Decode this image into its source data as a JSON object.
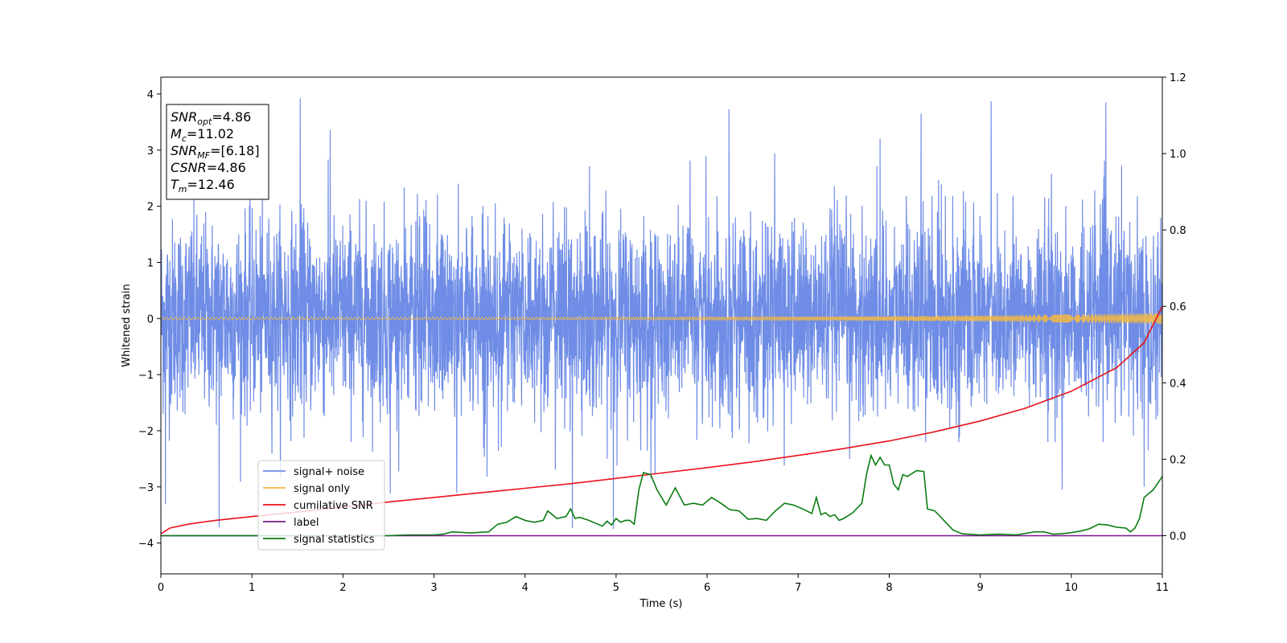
{
  "chart_data": {
    "type": "line",
    "title": "",
    "xlabel": "Time (s)",
    "ylabel": "Whitened strain",
    "y2label": "",
    "xlim": [
      0,
      11
    ],
    "ylim": [
      -4.55,
      4.3
    ],
    "y2lim": [
      -0.1,
      1.2
    ],
    "x_ticks": [
      "0",
      "1",
      "2",
      "3",
      "4",
      "5",
      "6",
      "7",
      "8",
      "9",
      "10",
      "11"
    ],
    "y_ticks": [
      "−4",
      "−3",
      "−2",
      "−1",
      "0",
      "1",
      "2",
      "3",
      "4"
    ],
    "y2_ticks": [
      "0.0",
      "0.2",
      "0.4",
      "0.6",
      "0.8",
      "1.0",
      "1.2"
    ],
    "grid": false,
    "legend_position": "lower-left",
    "annotation": {
      "lines": [
        {
          "main": "SNR",
          "sub": "opt",
          "rest": "=4.86"
        },
        {
          "main": "M",
          "sub": "c",
          "rest": "=11.02"
        },
        {
          "main": "SNR",
          "sub": "MF",
          "rest": "=[6.18]"
        },
        {
          "main": "CSNR",
          "sub": "",
          "rest": "=4.86"
        },
        {
          "main": "T",
          "sub": "m",
          "rest": "=12.46"
        }
      ]
    },
    "series": [
      {
        "name": "signal+ noise",
        "color": "#6f8de6",
        "axis": "left",
        "kind": "noise",
        "envelope": {
          "typical_min": -1.9,
          "typical_max": 2.1
        },
        "peaks": [
          {
            "x": 1.53,
            "y": 3.92
          },
          {
            "x": 9.12,
            "y": 3.87
          },
          {
            "x": 10.38,
            "y": 3.85
          },
          {
            "x": 6.24,
            "y": 3.73
          },
          {
            "x": 8.35,
            "y": 3.65
          },
          {
            "x": 0.64,
            "y": -3.72
          },
          {
            "x": 4.52,
            "y": -3.73
          },
          {
            "x": 4.97,
            "y": -3.75
          },
          {
            "x": 1.86,
            "y": 3.36
          },
          {
            "x": 0.05,
            "y": -3.31
          },
          {
            "x": 3.25,
            "y": -3.1
          },
          {
            "x": 7.9,
            "y": 3.2
          },
          {
            "x": 2.52,
            "y": -3.12
          },
          {
            "x": 10.8,
            "y": -3.0
          },
          {
            "x": 9.9,
            "y": -3.05
          }
        ]
      },
      {
        "name": "signal only",
        "color": "#f5b841",
        "axis": "left",
        "kind": "chirp",
        "amplitude_start": 0.02,
        "amplitude_end": 0.1
      },
      {
        "name": "cumilative SNR",
        "color": "#e8121b",
        "axis": "right",
        "x": [
          0,
          0.1,
          0.3,
          0.6,
          1,
          1.5,
          2,
          2.5,
          3,
          3.5,
          4,
          4.5,
          5,
          5.5,
          6,
          6.5,
          7,
          7.5,
          8,
          8.5,
          9,
          9.5,
          10,
          10.5,
          10.8,
          11
        ],
        "values": [
          0.005,
          0.02,
          0.03,
          0.04,
          0.05,
          0.062,
          0.075,
          0.088,
          0.1,
          0.112,
          0.124,
          0.136,
          0.15,
          0.164,
          0.178,
          0.193,
          0.21,
          0.228,
          0.248,
          0.272,
          0.3,
          0.334,
          0.378,
          0.44,
          0.505,
          0.6
        ]
      },
      {
        "name": "label",
        "color": "#7b148f",
        "axis": "right",
        "x": [
          0,
          11
        ],
        "values": [
          0,
          0
        ]
      },
      {
        "name": "signal statistics",
        "color": "#0b7d12",
        "axis": "right",
        "x": [
          0,
          0.5,
          1,
          1.5,
          2,
          2.5,
          2.7,
          3,
          3.1,
          3.2,
          3.4,
          3.6,
          3.7,
          3.8,
          3.9,
          4,
          4.1,
          4.2,
          4.25,
          4.35,
          4.45,
          4.5,
          4.55,
          4.6,
          4.7,
          4.8,
          4.85,
          4.9,
          4.95,
          5,
          5.05,
          5.1,
          5.15,
          5.2,
          5.25,
          5.3,
          5.38,
          5.45,
          5.55,
          5.65,
          5.75,
          5.85,
          5.95,
          6.05,
          6.15,
          6.25,
          6.35,
          6.45,
          6.55,
          6.65,
          6.75,
          6.85,
          6.95,
          7.05,
          7.15,
          7.2,
          7.25,
          7.3,
          7.35,
          7.4,
          7.45,
          7.5,
          7.6,
          7.7,
          7.75,
          7.8,
          7.85,
          7.9,
          7.95,
          8.0,
          8.05,
          8.1,
          8.15,
          8.2,
          8.3,
          8.38,
          8.42,
          8.5,
          8.6,
          8.7,
          8.8,
          9.0,
          9.2,
          9.4,
          9.6,
          9.7,
          9.8,
          9.9,
          10.0,
          10.1,
          10.2,
          10.3,
          10.4,
          10.5,
          10.6,
          10.65,
          10.7,
          10.75,
          10.8,
          10.9,
          11
        ],
        "values": [
          0.0,
          0.0,
          0.0,
          0.0,
          0.0,
          0.0,
          0.002,
          0.002,
          0.004,
          0.01,
          0.007,
          0.01,
          0.03,
          0.035,
          0.05,
          0.04,
          0.035,
          0.04,
          0.065,
          0.045,
          0.05,
          0.07,
          0.045,
          0.048,
          0.04,
          0.03,
          0.025,
          0.038,
          0.028,
          0.045,
          0.035,
          0.04,
          0.04,
          0.03,
          0.12,
          0.165,
          0.16,
          0.12,
          0.08,
          0.125,
          0.08,
          0.085,
          0.08,
          0.1,
          0.085,
          0.068,
          0.065,
          0.043,
          0.045,
          0.04,
          0.065,
          0.085,
          0.08,
          0.07,
          0.058,
          0.1,
          0.055,
          0.06,
          0.05,
          0.055,
          0.04,
          0.045,
          0.06,
          0.085,
          0.16,
          0.21,
          0.185,
          0.205,
          0.185,
          0.185,
          0.135,
          0.12,
          0.16,
          0.155,
          0.17,
          0.168,
          0.07,
          0.065,
          0.04,
          0.015,
          0.005,
          0.002,
          0.004,
          0.002,
          0.01,
          0.01,
          0.004,
          0.005,
          0.008,
          0.012,
          0.018,
          0.03,
          0.028,
          0.022,
          0.02,
          0.01,
          0.02,
          0.045,
          0.1,
          0.12,
          0.155
        ]
      }
    ]
  }
}
